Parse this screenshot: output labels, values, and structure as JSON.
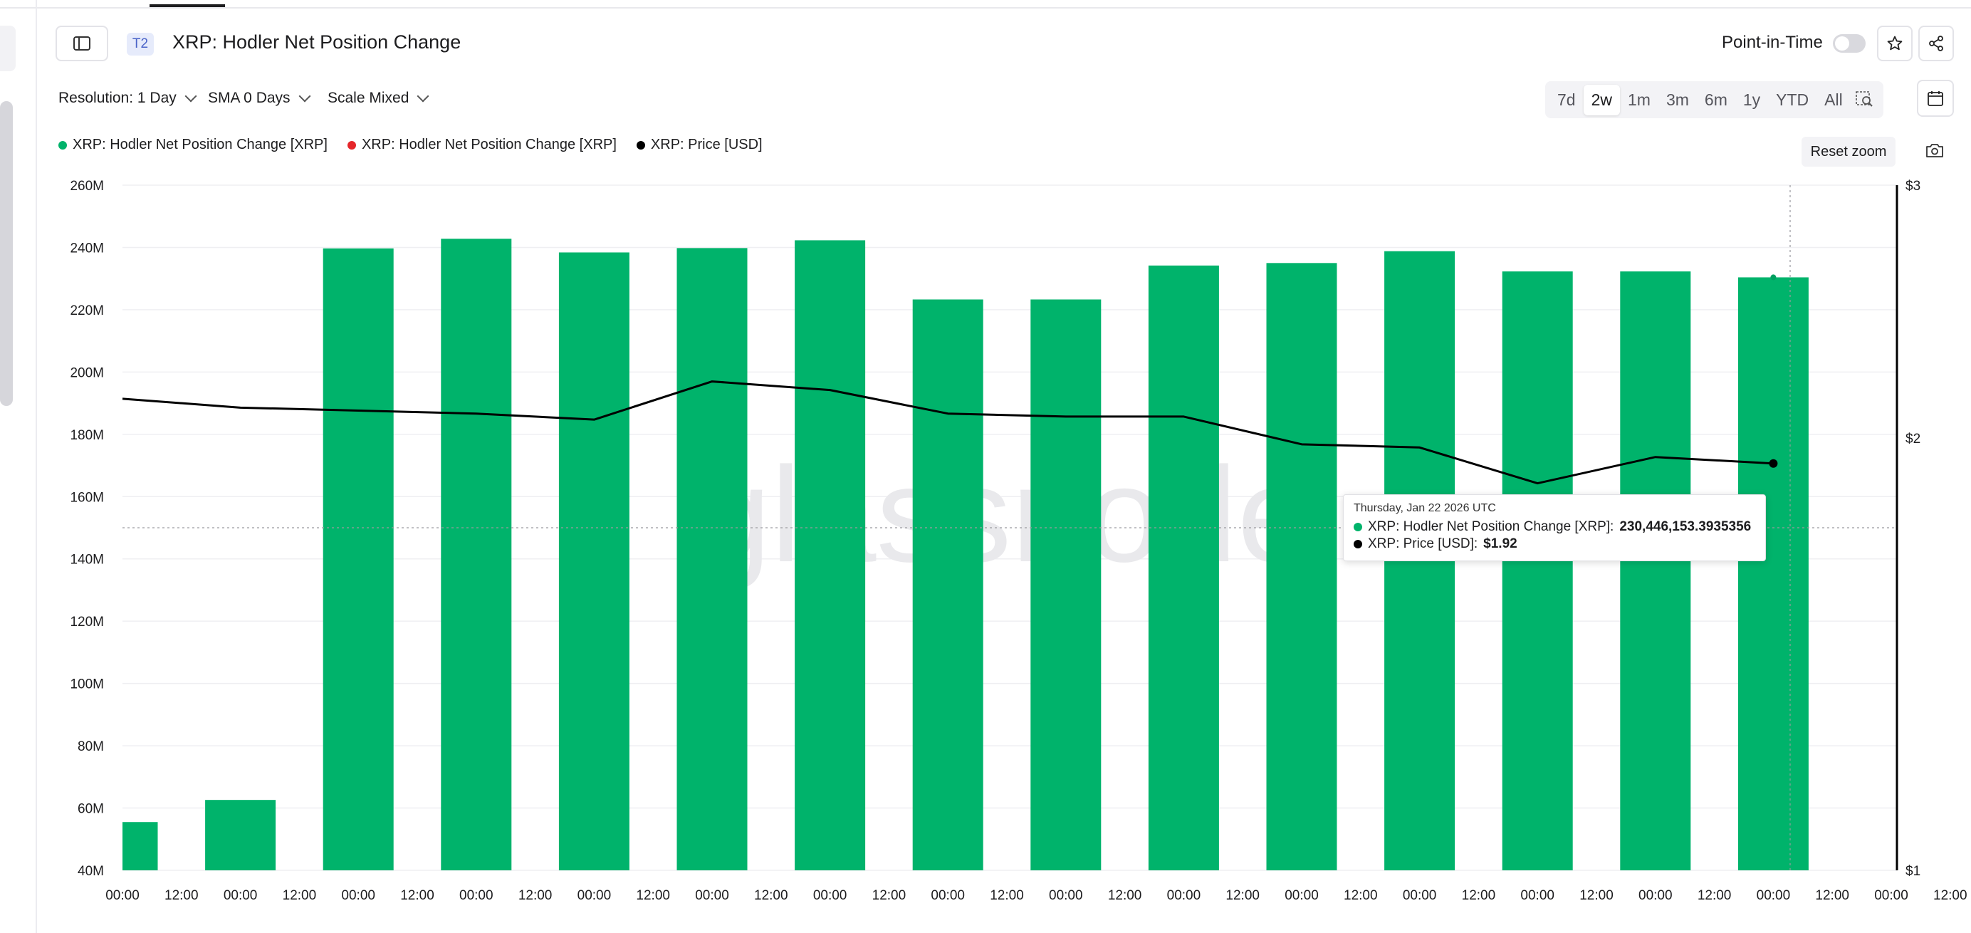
{
  "header": {
    "tier_badge": "T2",
    "title": "XRP: Hodler Net Position Change",
    "point_in_time_label": "Point-in-Time"
  },
  "controls": {
    "resolution": "Resolution: 1 Day",
    "sma": "SMA 0 Days",
    "scale": "Scale Mixed"
  },
  "ranges": [
    "7d",
    "2w",
    "1m",
    "3m",
    "6m",
    "1y",
    "YTD",
    "All"
  ],
  "active_range": "2w",
  "reset_zoom": "Reset zoom",
  "legend": [
    {
      "label": "XRP: Hodler Net Position Change [XRP]",
      "color": "#00b36b"
    },
    {
      "label": "XRP: Hodler Net Position Change [XRP]",
      "color": "#e5262a"
    },
    {
      "label": "XRP: Price [USD]",
      "color": "#000000"
    }
  ],
  "tooltip": {
    "date": "Thursday, Jan 22 2026 UTC",
    "rows": [
      {
        "label": "XRP: Hodler Net Position Change [XRP]: ",
        "value": "230,446,153.3935356",
        "color": "#00b36b"
      },
      {
        "label": "XRP: Price [USD]: ",
        "value": "$1.92",
        "color": "#000000"
      }
    ]
  },
  "watermark": "glassnode",
  "chart_data": {
    "type": "bar",
    "x_tick_labels": [
      "00:00",
      "12:00",
      "00:00",
      "12:00",
      "00:00",
      "12:00",
      "00:00",
      "12:00",
      "00:00",
      "12:00",
      "00:00",
      "12:00",
      "00:00",
      "12:00",
      "00:00",
      "12:00",
      "00:00",
      "12:00",
      "00:00",
      "12:00",
      "00:00",
      "12:00",
      "00:00",
      "12:00",
      "00:00",
      "12:00",
      "00:00",
      "12:00",
      "00:00",
      "12:00",
      "00:00",
      "12:00",
      "00:00"
    ],
    "y_left": {
      "ticks": [
        "260M",
        "240M",
        "220M",
        "200M",
        "180M",
        "160M",
        "140M",
        "120M",
        "100M",
        "80M",
        "60M",
        "40M"
      ],
      "range": [
        40,
        260
      ],
      "unit": "M"
    },
    "y_right": {
      "ticks": [
        "$3",
        "$2",
        "$1"
      ],
      "range": [
        1,
        3
      ],
      "scale": "log"
    },
    "series": [
      {
        "name": "XRP: Hodler Net Position Change [XRP]",
        "type": "bar",
        "color": "#00b36b",
        "values": [
          55.5,
          62.6,
          239.7,
          242.8,
          238.4,
          239.8,
          242.3,
          223.3,
          223.3,
          234.2,
          235.0,
          238.8,
          232.3,
          232.3,
          230.4
        ]
      },
      {
        "name": "XRP: Price [USD]",
        "type": "line",
        "color": "#000000",
        "values": [
          2.13,
          2.1,
          2.09,
          2.08,
          2.06,
          2.19,
          2.16,
          2.08,
          2.07,
          2.07,
          1.98,
          1.97,
          1.86,
          1.94,
          1.92
        ]
      }
    ],
    "crosshair_y_left": 150
  }
}
